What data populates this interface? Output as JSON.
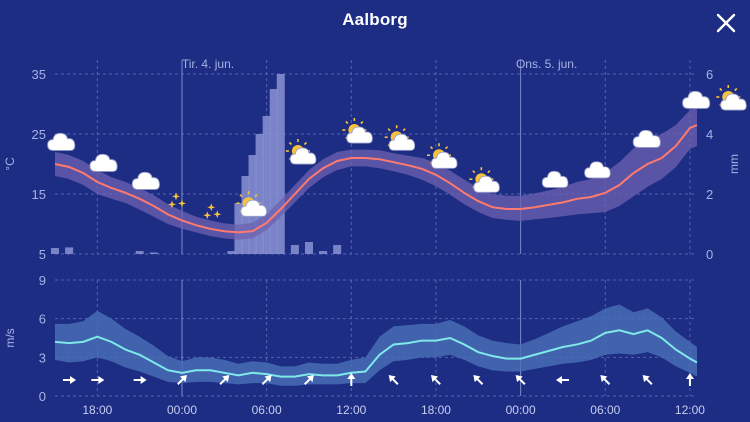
{
  "header": {
    "title": "Aalborg"
  },
  "icons": {
    "close": "close-icon"
  },
  "colors": {
    "background": "#1e2d84",
    "temperature_line": "#ff7a6e",
    "temperature_band": "#6e62b0",
    "wind_line": "#7fe9ea",
    "wind_band": "#4a6fb8",
    "precip_bar": "#8b93d2",
    "grid": "#5662b0"
  },
  "chart_data": [
    {
      "type": "line",
      "title": "",
      "series": [
        {
          "name": "",
          "x": [
            "15:00",
            "16:00",
            "17:00",
            "18:00",
            "19:00",
            "20:00",
            "21:00",
            "22:00",
            "23:00",
            "00:00",
            "01:00",
            "02:00",
            "03:00",
            "04:00",
            "05:00",
            "06:00",
            "07:00",
            "08:00",
            "09:00",
            "10:00",
            "11:00",
            "12:00",
            "13:00",
            "14:00",
            "15:00",
            "16:00",
            "17:00",
            "18:00",
            "19:00",
            "20:00",
            "21:00",
            "22:00",
            "23:00",
            "00:00",
            "01:00",
            "02:00",
            "03:00",
            "04:00",
            "05:00",
            "06:00",
            "07:00",
            "08:00",
            "09:00",
            "10:00",
            "11:00",
            "12:00",
            "12:30"
          ],
          "y": [
            20,
            19.5,
            18.5,
            17,
            16,
            15.2,
            14.2,
            13,
            11.6,
            10.6,
            9.8,
            9.2,
            8.8,
            8.6,
            8.8,
            10.2,
            12.5,
            15,
            17.5,
            19.3,
            20.5,
            21,
            21,
            20.8,
            20.3,
            19.8,
            19.2,
            18.2,
            16.8,
            15.2,
            13.8,
            12.8,
            12.5,
            12.5,
            12.8,
            13.2,
            13.6,
            14.2,
            14.5,
            15.2,
            16.5,
            18.5,
            20,
            21,
            23,
            26,
            26.5
          ]
        }
      ],
      "band_low": [
        18,
        17.5,
        16.5,
        15,
        14.2,
        13.5,
        12.4,
        11.2,
        10,
        9.2,
        8.6,
        8,
        7.6,
        7.4,
        7.6,
        9,
        11.2,
        13.6,
        16,
        17.8,
        19,
        19.6,
        19.6,
        19.3,
        18.8,
        18.2,
        17.4,
        16.3,
        14.9,
        13.3,
        12,
        11,
        10.7,
        10.5,
        10.8,
        11,
        11.3,
        11.6,
        11.8,
        12,
        13,
        14.6,
        16.2,
        17.5,
        19.5,
        22.5,
        23
      ],
      "band_high": [
        22,
        21.5,
        20.5,
        19,
        17.8,
        17,
        16,
        14.8,
        13.3,
        12.2,
        11.2,
        10.6,
        10.1,
        9.9,
        10.2,
        11.6,
        14,
        16.5,
        19,
        20.8,
        22,
        22.4,
        22.4,
        22.3,
        21.8,
        21.4,
        21,
        20.2,
        18.9,
        17.4,
        16,
        15,
        14.7,
        14.7,
        15.1,
        15.6,
        16.2,
        17,
        17.5,
        18.6,
        20.3,
        22.6,
        24,
        25,
        26.5,
        29,
        29.5
      ],
      "ylim": [
        5,
        35
      ],
      "yticks": [
        "5",
        "15",
        "25",
        "35"
      ],
      "ylabel": "°C",
      "y2label": "mm",
      "y2lim": [
        0,
        6
      ],
      "y2ticks": [
        "0",
        "2",
        "4",
        "6"
      ],
      "precipitation": {
        "x": [
          "15:00",
          "16:00",
          "21:00",
          "22:00",
          "03:30",
          "04:00",
          "04:30",
          "05:00",
          "05:30",
          "06:00",
          "06:30",
          "07:00",
          "08:00",
          "09:00",
          "10:00",
          "11:00"
        ],
        "values": [
          0.2,
          0.22,
          0.1,
          0.05,
          0.1,
          1.7,
          2.6,
          3.3,
          4,
          4.6,
          5.5,
          6,
          0.3,
          0.4,
          0.1,
          0.3
        ]
      },
      "day_labels": [
        "Tir. 4. jun.",
        "Ons. 5. jun."
      ],
      "weather_symbols": [
        "partly-cloudy",
        "cloudy",
        "cloudy",
        "clear-night",
        "clear-night",
        "partly-sunny",
        "partly-sunny",
        "partly-sunny",
        "partly-sunny",
        "partly-sunny",
        "partly-sunny",
        "partly-cloudy-night",
        "partly-cloudy-night",
        "cloudy",
        "cloudy",
        "partly-sunny"
      ],
      "grid": true
    },
    {
      "type": "line",
      "title": "",
      "ylabel": "m/s",
      "ylim": [
        0,
        9
      ],
      "yticks": [
        "0",
        "3",
        "6",
        "9"
      ],
      "xticks": [
        "18:00",
        "00:00",
        "06:00",
        "12:00",
        "18:00",
        "00:00",
        "06:00",
        "12:00"
      ],
      "series": [
        {
          "name": "",
          "x": [
            "15:00",
            "16:00",
            "17:00",
            "18:00",
            "19:00",
            "20:00",
            "21:00",
            "22:00",
            "23:00",
            "00:00",
            "01:00",
            "02:00",
            "03:00",
            "04:00",
            "05:00",
            "06:00",
            "07:00",
            "08:00",
            "09:00",
            "10:00",
            "11:00",
            "12:00",
            "13:00",
            "14:00",
            "15:00",
            "16:00",
            "17:00",
            "18:00",
            "19:00",
            "20:00",
            "21:00",
            "22:00",
            "23:00",
            "00:00",
            "01:00",
            "02:00",
            "03:00",
            "04:00",
            "05:00",
            "06:00",
            "07:00",
            "08:00",
            "09:00",
            "10:00",
            "11:00",
            "12:00",
            "12:30"
          ],
          "y": [
            4.2,
            4.1,
            4.2,
            4.6,
            4.2,
            3.6,
            3.2,
            2.6,
            2.0,
            1.8,
            2.0,
            2.0,
            1.8,
            1.6,
            1.8,
            1.7,
            1.5,
            1.5,
            1.7,
            1.6,
            1.6,
            1.8,
            1.9,
            3.2,
            4.0,
            4.1,
            4.3,
            4.3,
            4.5,
            4.0,
            3.4,
            3.1,
            2.9,
            2.9,
            3.2,
            3.5,
            3.8,
            4.0,
            4.3,
            4.9,
            5.1,
            4.8,
            5.1,
            4.5,
            3.6,
            2.9,
            2.6
          ]
        }
      ],
      "band_low": [
        2.8,
        2.6,
        2.7,
        3.0,
        2.7,
        2.2,
        1.9,
        1.5,
        1.1,
        1.0,
        1.1,
        1.1,
        1.0,
        0.9,
        1.0,
        1.0,
        0.8,
        0.8,
        0.9,
        0.9,
        0.9,
        1.0,
        1.0,
        2.0,
        2.7,
        2.8,
        3.0,
        3.0,
        3.2,
        2.8,
        2.3,
        2.0,
        1.9,
        1.9,
        2.1,
        2.3,
        2.5,
        2.6,
        2.8,
        3.2,
        3.3,
        3.2,
        3.4,
        3.0,
        2.3,
        1.8,
        1.5
      ],
      "band_high": [
        5.6,
        5.6,
        5.8,
        6.6,
        6.0,
        5.2,
        4.6,
        3.9,
        3.1,
        2.7,
        3.0,
        3.0,
        2.8,
        2.5,
        2.7,
        2.6,
        2.3,
        2.3,
        2.6,
        2.5,
        2.5,
        2.8,
        3.0,
        4.6,
        5.4,
        5.5,
        5.6,
        5.6,
        5.9,
        5.4,
        4.7,
        4.3,
        4.1,
        4.0,
        4.4,
        4.9,
        5.4,
        5.8,
        6.2,
        6.8,
        7.1,
        6.5,
        6.8,
        6.1,
        5.0,
        4.2,
        3.8
      ],
      "wind_direction": {
        "x": [
          "15:00",
          "18:00",
          "21:00",
          "00:00",
          "03:00",
          "06:00",
          "09:00",
          "12:00",
          "15:00",
          "18:00",
          "21:00",
          "00:00",
          "03:00",
          "06:00",
          "09:00",
          "12:00"
        ],
        "degrees_to": [
          90,
          90,
          90,
          45,
          45,
          45,
          45,
          0,
          315,
          315,
          315,
          315,
          270,
          315,
          315,
          0
        ]
      },
      "grid": true
    }
  ]
}
